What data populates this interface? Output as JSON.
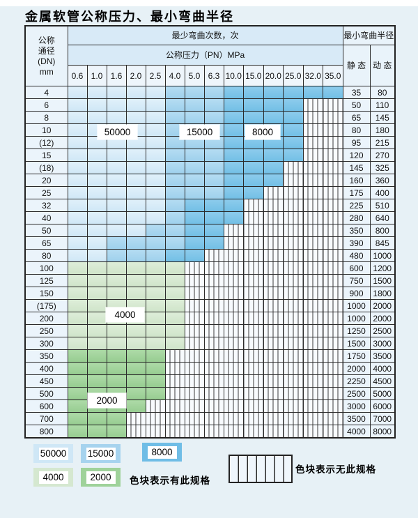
{
  "title": "金属软管公称压力、最小弯曲半径",
  "colors": {
    "blue_50000": "#cfe7f6",
    "blue_15000": "#a6d3ee",
    "blue_8000": "#6fbde6",
    "green_4000": "#d5e8d0",
    "green_2000": "#9fd29a",
    "grid_line": "#2b2b2b",
    "page_background": "#e7f1f6"
  },
  "table": {
    "header": {
      "dn_lines": [
        "公称",
        "通径",
        "(DN)",
        "mm"
      ],
      "cycles_title": "最少弯曲次数，次",
      "pressure_title": "公称压力（PN）MPa",
      "radius_title": "最小弯曲半径",
      "static_label": "静 态",
      "dynamic_label": "动 态",
      "pressure_columns": [
        "0.6",
        "1.0",
        "1.6",
        "2.0",
        "2.5",
        "4.0",
        "5.0",
        "6.3",
        "10.0",
        "15.0",
        "20.0",
        "25.0",
        "32.0",
        "35.0"
      ]
    },
    "cell_legend_codes": {
      "L": "50000",
      "M": "15000",
      "D": "8000",
      "G": "4000",
      "E": "2000",
      "S": "no-spec-striped"
    },
    "rows": [
      {
        "dn": "4",
        "cells": "LLLLLMMMDDDDDD",
        "static": "35",
        "dynamic": "80"
      },
      {
        "dn": "6",
        "cells": "LLLLLMMMDDDDSS",
        "static": "50",
        "dynamic": "110"
      },
      {
        "dn": "8",
        "cells": "LLLLLMMMDDDDSS",
        "static": "65",
        "dynamic": "145"
      },
      {
        "dn": "10",
        "cells": "LLLLLMMMDDDDSS",
        "static": "80",
        "dynamic": "180"
      },
      {
        "dn": "(12)",
        "cells": "LLLLLMMMDDDDSS",
        "static": "95",
        "dynamic": "215"
      },
      {
        "dn": "15",
        "cells": "LLLLLMMMDDDDSS",
        "static": "120",
        "dynamic": "270"
      },
      {
        "dn": "(18)",
        "cells": "LLLLLMMMDDDSSS",
        "static": "145",
        "dynamic": "325"
      },
      {
        "dn": "20",
        "cells": "LLLLLMMMDDDSSS",
        "static": "160",
        "dynamic": "360"
      },
      {
        "dn": "25",
        "cells": "LLLLLMMMDDSSSS",
        "static": "175",
        "dynamic": "400"
      },
      {
        "dn": "32",
        "cells": "LLLLLMDDDSSSSS",
        "static": "225",
        "dynamic": "510"
      },
      {
        "dn": "40",
        "cells": "LLLLLMDDDSSSSS",
        "static": "280",
        "dynamic": "640"
      },
      {
        "dn": "50",
        "cells": "LLLLMMDDSSSSSS",
        "static": "350",
        "dynamic": "800"
      },
      {
        "dn": "65",
        "cells": "LLMMMMDDSSSSSS",
        "static": "390",
        "dynamic": "845"
      },
      {
        "dn": "80",
        "cells": "LLMMMDDSSSSSSS",
        "static": "480",
        "dynamic": "1000"
      },
      {
        "dn": "100",
        "cells": "GGGGGGSSSSSSSS",
        "static": "600",
        "dynamic": "1200"
      },
      {
        "dn": "125",
        "cells": "GGGGGGSSSSSSSS",
        "static": "750",
        "dynamic": "1500"
      },
      {
        "dn": "150",
        "cells": "GGGGGGSSSSSSSS",
        "static": "900",
        "dynamic": "1800"
      },
      {
        "dn": "(175)",
        "cells": "GGGGGGSSSSSSSS",
        "static": "1000",
        "dynamic": "2000"
      },
      {
        "dn": "200",
        "cells": "GGGGGGSSSSSSSS",
        "static": "1000",
        "dynamic": "2000"
      },
      {
        "dn": "250",
        "cells": "GGGGGGSSSSSSSS",
        "static": "1250",
        "dynamic": "2500"
      },
      {
        "dn": "300",
        "cells": "GGGGGGSSSSSSSS",
        "static": "1500",
        "dynamic": "3000"
      },
      {
        "dn": "350",
        "cells": "EEEEESSSSSSSSS",
        "static": "1750",
        "dynamic": "3500"
      },
      {
        "dn": "400",
        "cells": "EEEEESSSSSSSSS",
        "static": "2000",
        "dynamic": "4000"
      },
      {
        "dn": "450",
        "cells": "EEEEESSSSSSSSS",
        "static": "2250",
        "dynamic": "4500"
      },
      {
        "dn": "500",
        "cells": "EEEEESSSSSSSSS",
        "static": "2500",
        "dynamic": "5000"
      },
      {
        "dn": "600",
        "cells": "EEEESSSSSSSSSS",
        "static": "3000",
        "dynamic": "6000"
      },
      {
        "dn": "700",
        "cells": "EEESSSSSSSSSSS",
        "static": "3500",
        "dynamic": "7000"
      },
      {
        "dn": "800",
        "cells": "EEESSSSSSSSSSS",
        "static": "4000",
        "dynamic": "8000"
      }
    ],
    "overlay_labels": {
      "blue_light": "50000",
      "blue_mid": "15000",
      "blue_dark": "8000",
      "green_light": "4000",
      "green_mid": "2000"
    }
  },
  "legend": {
    "swatches": [
      {
        "label": "50000"
      },
      {
        "label": "15000"
      },
      {
        "label": "8000"
      },
      {
        "label": "4000"
      },
      {
        "label": "2000"
      }
    ],
    "has_spec_text": "色块表示有此规格",
    "no_spec_text": "色块表示无此规格"
  }
}
